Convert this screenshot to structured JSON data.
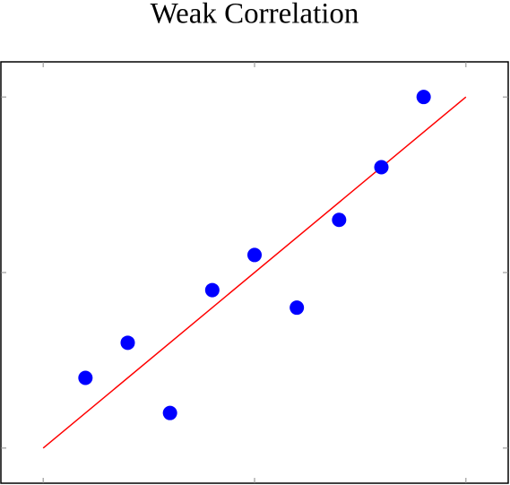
{
  "chart_data": {
    "type": "scatter",
    "title": "Weak Correlation",
    "x": [
      1,
      2,
      3,
      4,
      5,
      6,
      7,
      8,
      9
    ],
    "values": [
      2.0,
      3.0,
      1.0,
      4.5,
      5.5,
      4.0,
      6.5,
      8.0,
      10.0
    ],
    "color": "#0000ff",
    "fit": {
      "x": [
        0,
        10
      ],
      "y": [
        0,
        10
      ],
      "color": "#ff0000"
    },
    "xlim": [
      -1,
      11
    ],
    "ylim": [
      -1,
      11
    ],
    "xticks": [
      0,
      5,
      10
    ],
    "yticks": [
      0,
      5,
      10
    ]
  }
}
